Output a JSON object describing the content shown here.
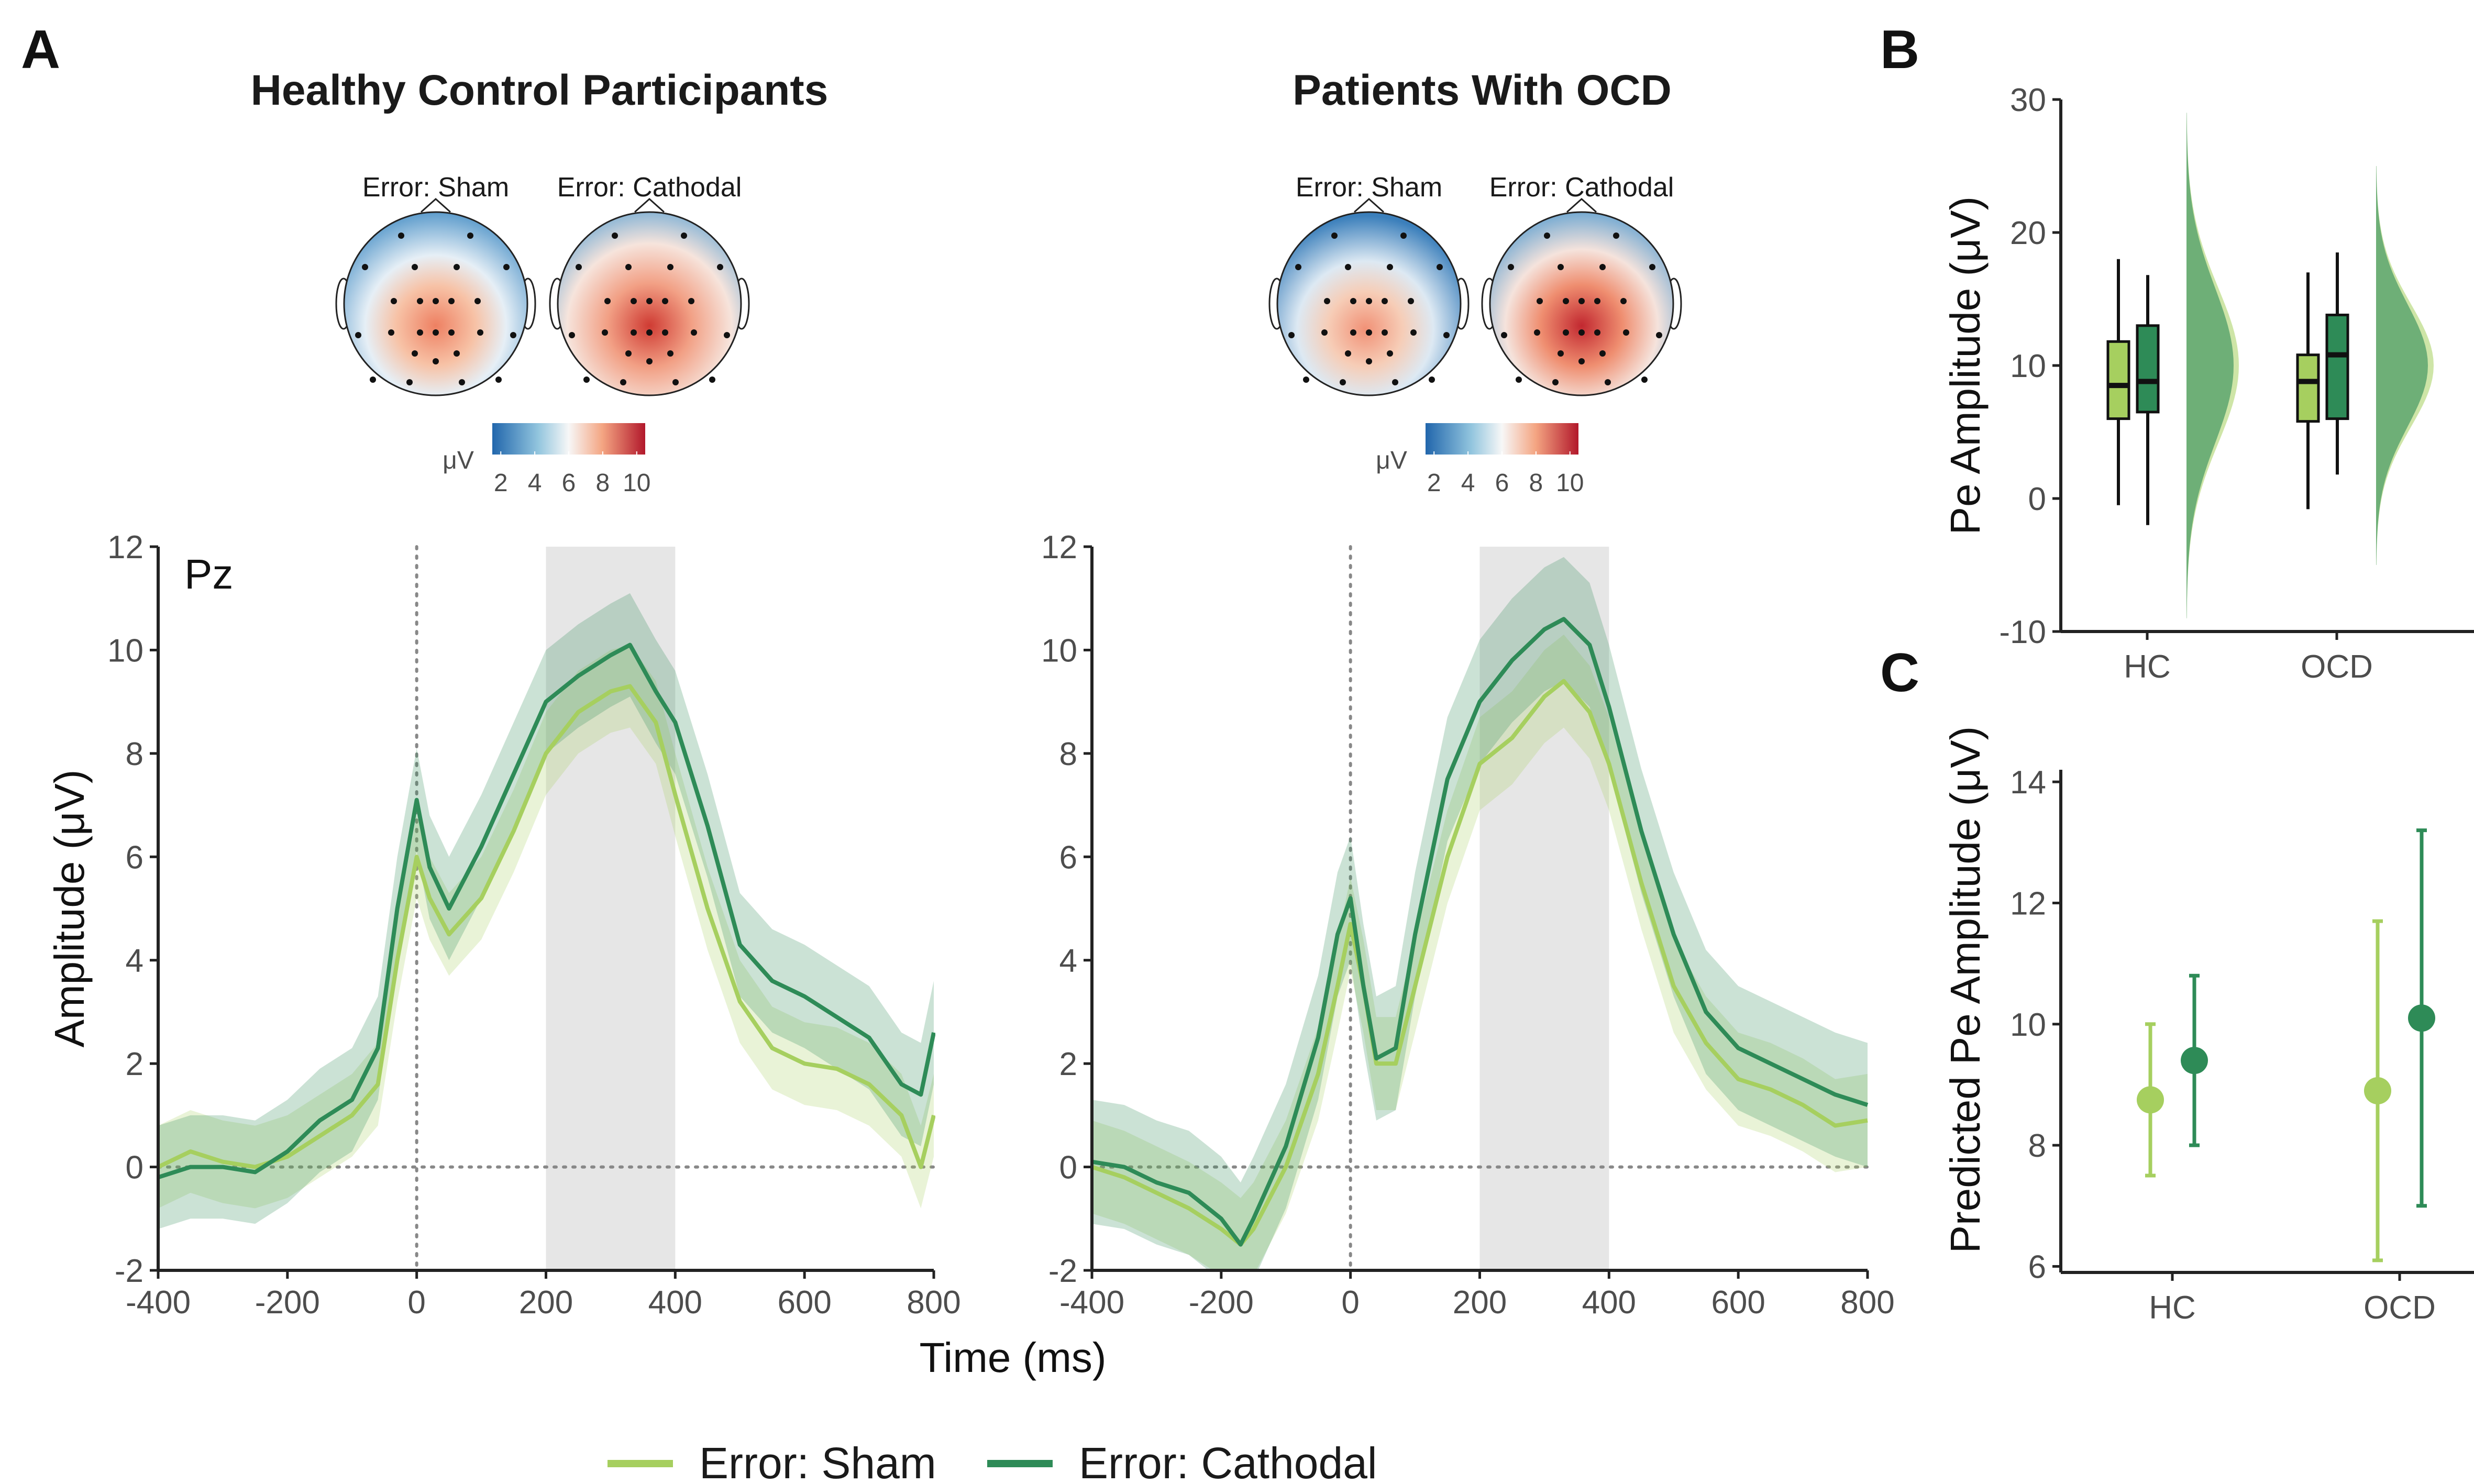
{
  "colors": {
    "sham": "#a6cf5f",
    "cathodal": "#2e8b57",
    "shade": "#e6e6e6",
    "blue": "#2166ac",
    "red": "#c62828"
  },
  "panel_letters": {
    "a": "A",
    "b": "B",
    "c": "C"
  },
  "legend": {
    "sham": "Error: Sham",
    "cathodal": "Error: Cathodal"
  },
  "topo": {
    "hc_title": "Healthy Control Participants",
    "ocd_title": "Patients With OCD",
    "label_sham": "Error: Sham",
    "label_cathodal": "Error: Cathodal",
    "unit": "μV",
    "ticks": [
      "2",
      "4",
      "6",
      "8",
      "10"
    ]
  },
  "chart_data": [
    {
      "type": "line",
      "panel": "A-left",
      "annotation": "Pz",
      "xlabel": "Time (ms)",
      "ylabel": "Amplitude (μV)",
      "xlim": [
        -400,
        800
      ],
      "ylim": [
        -2,
        12
      ],
      "xticks": [
        "-400",
        "-200",
        "0",
        "200",
        "400",
        "600",
        "800"
      ],
      "yticks": [
        "-2",
        "0",
        "2",
        "4",
        "6",
        "8",
        "10",
        "12"
      ],
      "shaded_window": [
        200,
        400
      ],
      "x": [
        -400,
        -350,
        -300,
        -250,
        -200,
        -150,
        -100,
        -60,
        -30,
        0,
        20,
        50,
        100,
        150,
        200,
        250,
        300,
        330,
        370,
        400,
        450,
        500,
        550,
        600,
        650,
        700,
        750,
        780,
        800
      ],
      "series": [
        {
          "name": "Error: Sham",
          "band": 0.8,
          "values": [
            0.0,
            0.3,
            0.1,
            0.0,
            0.2,
            0.6,
            1.0,
            1.6,
            4.0,
            6.0,
            5.2,
            4.5,
            5.2,
            6.5,
            8.0,
            8.8,
            9.2,
            9.3,
            8.6,
            7.2,
            5.0,
            3.2,
            2.3,
            2.0,
            1.9,
            1.6,
            1.0,
            0.0,
            1.0
          ]
        },
        {
          "name": "Error: Cathodal",
          "band": 1.0,
          "values": [
            -0.2,
            0.0,
            0.0,
            -0.1,
            0.3,
            0.9,
            1.3,
            2.3,
            5.0,
            7.1,
            5.8,
            5.0,
            6.2,
            7.6,
            9.0,
            9.5,
            9.9,
            10.1,
            9.2,
            8.6,
            6.6,
            4.3,
            3.6,
            3.3,
            2.9,
            2.5,
            1.6,
            1.4,
            2.6
          ]
        }
      ]
    },
    {
      "type": "line",
      "panel": "A-right",
      "xlabel": "",
      "ylabel": "",
      "xlim": [
        -400,
        800
      ],
      "ylim": [
        -2,
        12
      ],
      "xticks": [
        "-400",
        "-200",
        "0",
        "200",
        "400",
        "600",
        "800"
      ],
      "yticks": [
        "-2",
        "0",
        "2",
        "4",
        "6",
        "8",
        "10",
        "12"
      ],
      "shaded_window": [
        200,
        400
      ],
      "x": [
        -400,
        -350,
        -300,
        -250,
        -200,
        -170,
        -150,
        -100,
        -50,
        -20,
        0,
        20,
        40,
        70,
        100,
        150,
        200,
        250,
        300,
        330,
        370,
        400,
        450,
        500,
        550,
        600,
        650,
        700,
        750,
        800
      ],
      "series": [
        {
          "name": "Error: Sham",
          "band": 0.9,
          "values": [
            0.0,
            -0.2,
            -0.5,
            -0.8,
            -1.2,
            -1.5,
            -1.2,
            0.0,
            1.8,
            3.5,
            4.7,
            3.5,
            2.0,
            2.0,
            3.5,
            6.0,
            7.8,
            8.3,
            9.1,
            9.4,
            8.8,
            7.8,
            5.5,
            3.5,
            2.4,
            1.7,
            1.5,
            1.2,
            0.8,
            0.9
          ]
        },
        {
          "name": "Error: Cathodal",
          "band": 1.2,
          "values": [
            0.1,
            0.0,
            -0.3,
            -0.5,
            -1.0,
            -1.5,
            -1.0,
            0.4,
            2.5,
            4.5,
            5.2,
            3.5,
            2.1,
            2.3,
            4.5,
            7.5,
            9.0,
            9.8,
            10.4,
            10.6,
            10.1,
            8.9,
            6.5,
            4.5,
            3.0,
            2.3,
            2.0,
            1.7,
            1.4,
            1.2
          ]
        }
      ]
    },
    {
      "type": "box",
      "panel": "B",
      "ylabel": "Pe Amplitude (μV)",
      "categories": [
        "HC",
        "OCD"
      ],
      "ylim": [
        -10,
        30
      ],
      "yticks": [
        "-10",
        "0",
        "10",
        "20",
        "30"
      ],
      "series": [
        {
          "name": "Error: Sham",
          "boxes": [
            {
              "q1": 6.0,
              "median": 8.5,
              "q3": 11.8,
              "min": -0.5,
              "max": 18.0
            },
            {
              "q1": 5.8,
              "median": 8.8,
              "q3": 10.8,
              "min": -0.8,
              "max": 17.0
            }
          ]
        },
        {
          "name": "Error: Cathodal",
          "boxes": [
            {
              "q1": 6.5,
              "median": 8.8,
              "q3": 13.0,
              "min": -2.0,
              "max": 16.8
            },
            {
              "q1": 6.0,
              "median": 10.8,
              "q3": 13.8,
              "min": 1.8,
              "max": 18.5
            }
          ]
        }
      ],
      "densities": [
        {
          "category": "HC",
          "peak": 10.0,
          "range": [
            -9,
            29
          ]
        },
        {
          "category": "OCD",
          "peak": 10.0,
          "range": [
            -5,
            25
          ]
        }
      ]
    },
    {
      "type": "scatter",
      "panel": "C",
      "ylabel": "Predicted Pe Amplitude (μV)",
      "categories": [
        "HC",
        "OCD"
      ],
      "ylim": [
        5.9,
        14.2
      ],
      "yticks": [
        "6",
        "8",
        "10",
        "12",
        "14"
      ],
      "series": [
        {
          "name": "Error: Sham",
          "values": [
            8.75,
            8.9
          ],
          "lower": [
            7.5,
            6.1
          ],
          "upper": [
            10.0,
            11.7
          ]
        },
        {
          "name": "Error: Cathodal",
          "values": [
            9.4,
            10.1
          ],
          "lower": [
            8.0,
            7.0
          ],
          "upper": [
            10.8,
            13.2
          ]
        }
      ]
    }
  ]
}
